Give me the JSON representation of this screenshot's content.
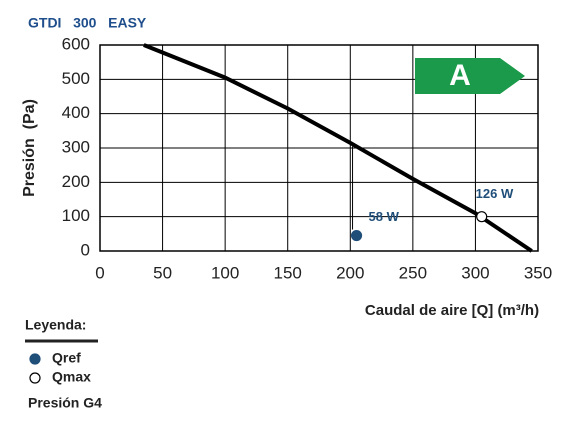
{
  "chart_data": {
    "type": "line",
    "title": "GTDI   300   EASY",
    "x_label": "Caudal de aire [Q] (m³/h)",
    "y_label": "Presión  (Pa)",
    "xlim": [
      0,
      350
    ],
    "ylim": [
      0,
      600
    ],
    "xticks": [
      0,
      50,
      100,
      150,
      200,
      250,
      300,
      350
    ],
    "yticks": [
      0,
      100,
      200,
      300,
      400,
      500,
      600
    ],
    "grid": true,
    "series": [
      {
        "name": "Presión G4",
        "color": "#000000",
        "x": [
          35,
          100,
          150,
          200,
          250,
          300,
          345
        ],
        "values": [
          600,
          505,
          415,
          315,
          210,
          110,
          0
        ]
      }
    ],
    "points": [
      {
        "name": "Qref",
        "x": 205,
        "y": 45,
        "label": "58 W",
        "color": "#1f4e79",
        "filled": true
      },
      {
        "name": "Qmax",
        "x": 305,
        "y": 100,
        "label": "126 W",
        "color": "#000000",
        "filled": false
      }
    ],
    "legend_title": "Leyenda:",
    "energy_class": "A",
    "energy_color": "#1a9a4a"
  }
}
